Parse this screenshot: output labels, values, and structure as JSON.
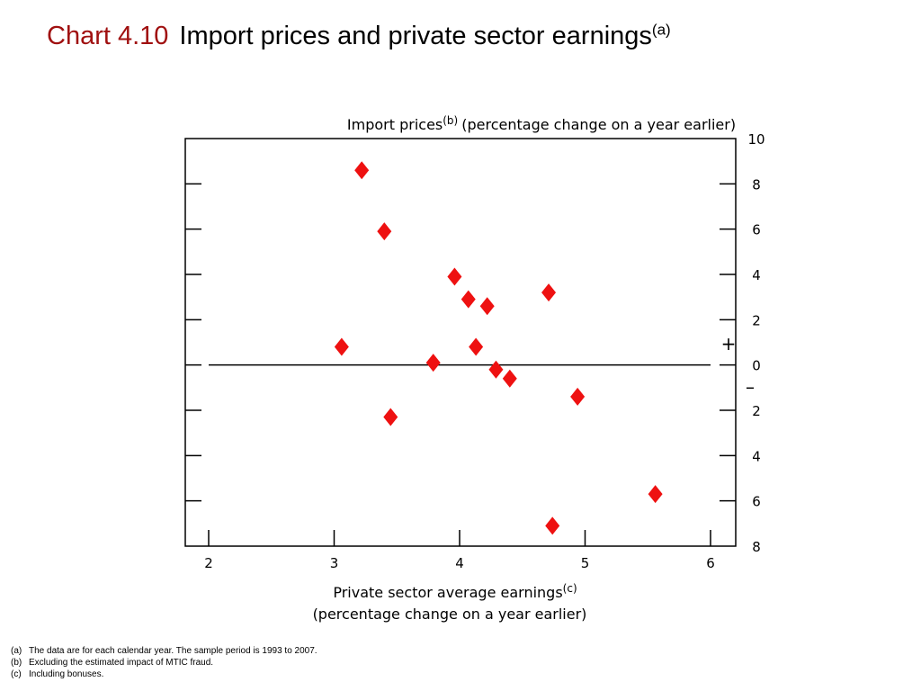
{
  "title": {
    "number": "Chart 4.10",
    "text": "Import prices and private sector earnings",
    "sup": "(a)"
  },
  "chart_data": {
    "type": "scatter",
    "ylabel": "Import prices",
    "ylabel_sup": "(b)",
    "ylabel_suffix": "(percentage change on a year earlier)",
    "xlabel_line1": "Private sector average earnings",
    "xlabel_sup": "(c)",
    "xlabel_line2": "(percentage change on a year earlier)",
    "xlim": [
      1.8,
      6.2
    ],
    "ylim": [
      -8,
      10
    ],
    "x_ticks": [
      2,
      3,
      4,
      5,
      6
    ],
    "x_tick_labels": [
      "2",
      "3",
      "4",
      "5",
      "6"
    ],
    "y_ticks": [
      10,
      8,
      6,
      4,
      2,
      0,
      -2,
      -4,
      -6,
      -8
    ],
    "y_tick_labels": [
      "10",
      "8",
      "6",
      "4",
      "2",
      "0",
      "2",
      "4",
      "6",
      "8"
    ],
    "sign_plus": "+",
    "sign_minus": "–",
    "marker": "diamond",
    "marker_color": "#ee1111",
    "points": [
      {
        "x": 3.22,
        "y": 8.6
      },
      {
        "x": 3.4,
        "y": 5.9
      },
      {
        "x": 3.96,
        "y": 3.9
      },
      {
        "x": 4.07,
        "y": 2.9
      },
      {
        "x": 4.22,
        "y": 2.6
      },
      {
        "x": 4.71,
        "y": 3.2
      },
      {
        "x": 3.06,
        "y": 0.8
      },
      {
        "x": 4.13,
        "y": 0.8
      },
      {
        "x": 3.79,
        "y": 0.1
      },
      {
        "x": 4.29,
        "y": -0.2
      },
      {
        "x": 4.4,
        "y": -0.6
      },
      {
        "x": 4.94,
        "y": -1.4
      },
      {
        "x": 3.45,
        "y": -2.3
      },
      {
        "x": 5.56,
        "y": -5.7
      },
      {
        "x": 4.74,
        "y": -7.1
      }
    ]
  },
  "footnotes": [
    {
      "tag": "(a)",
      "text": "The data are for each calendar year.  The sample period is 1993 to 2007."
    },
    {
      "tag": "(b)",
      "text": "Excluding the estimated impact of MTIC fraud."
    },
    {
      "tag": "(c)",
      "text": "Including bonuses."
    }
  ]
}
